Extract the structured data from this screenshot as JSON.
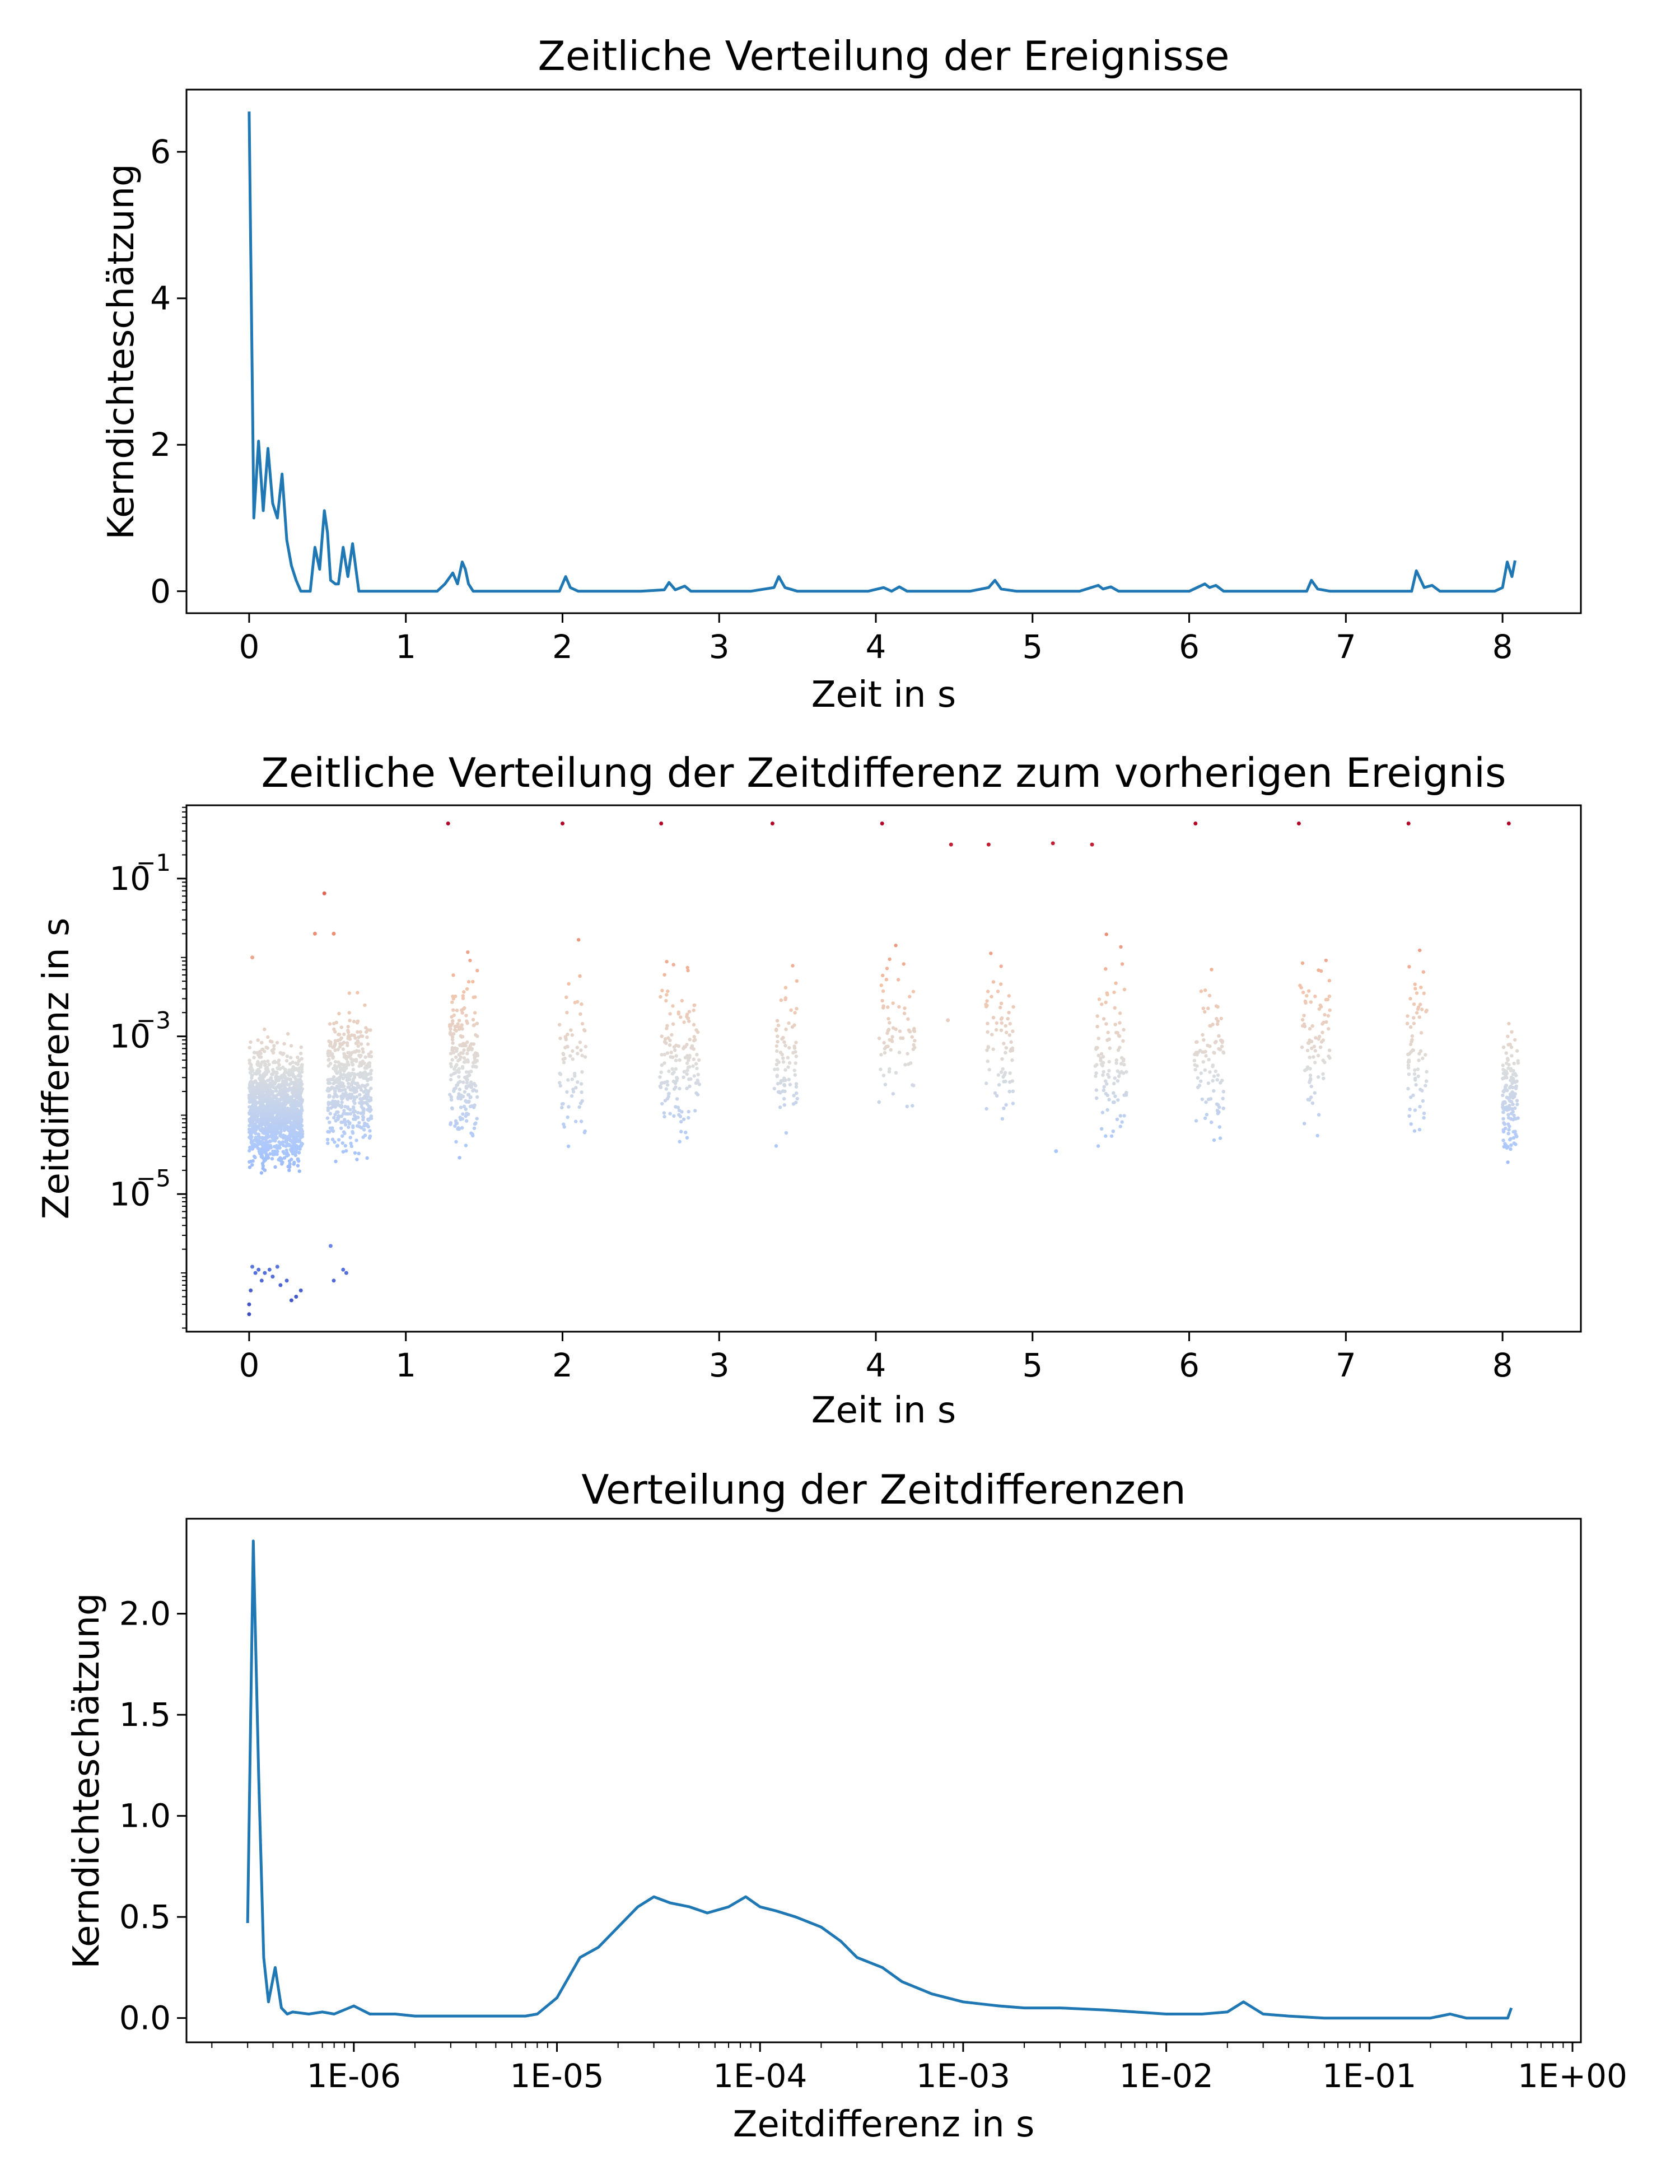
{
  "figure": {
    "line_color": "#1f77b4",
    "axis_color": "#000000",
    "scatter_colormap": [
      "#3b4cc0",
      "#6f92f3",
      "#aac7fd",
      "#dcdddd",
      "#f2c4ab",
      "#e7745b",
      "#b40426"
    ]
  },
  "chart_data": [
    {
      "type": "line",
      "title": "Zeitliche Verteilung der Ereignisse",
      "xlabel": "Zeit in s",
      "ylabel": "Kerndichteschätzung",
      "xlim": [
        -0.4,
        8.5
      ],
      "ylim": [
        -0.3,
        6.85
      ],
      "xticks": [
        0,
        1,
        2,
        3,
        4,
        5,
        6,
        7,
        8
      ],
      "xtick_labels": [
        "0",
        "1",
        "2",
        "3",
        "4",
        "5",
        "6",
        "7",
        "8"
      ],
      "yticks": [
        0,
        2,
        4,
        6
      ],
      "ytick_labels": [
        "0",
        "2",
        "4",
        "6"
      ],
      "grid": false,
      "series": [
        {
          "color": "#1f77b4",
          "x": [
            0.0,
            0.03,
            0.06,
            0.09,
            0.12,
            0.15,
            0.18,
            0.21,
            0.24,
            0.27,
            0.3,
            0.33,
            0.36,
            0.39,
            0.42,
            0.45,
            0.48,
            0.5,
            0.52,
            0.55,
            0.57,
            0.6,
            0.63,
            0.66,
            0.7,
            0.73,
            0.76,
            0.8,
            0.9,
            1.0,
            1.1,
            1.2,
            1.25,
            1.3,
            1.33,
            1.36,
            1.38,
            1.4,
            1.43,
            1.47,
            1.55,
            1.8,
            1.98,
            2.02,
            2.05,
            2.1,
            2.3,
            2.5,
            2.65,
            2.68,
            2.72,
            2.78,
            2.82,
            2.88,
            3.0,
            3.2,
            3.35,
            3.38,
            3.42,
            3.5,
            3.7,
            3.95,
            4.05,
            4.1,
            4.15,
            4.2,
            4.3,
            4.45,
            4.6,
            4.72,
            4.76,
            4.8,
            4.9,
            5.1,
            5.3,
            5.42,
            5.45,
            5.5,
            5.55,
            5.6,
            5.8,
            6.0,
            6.1,
            6.13,
            6.17,
            6.22,
            6.3,
            6.6,
            6.75,
            6.78,
            6.82,
            6.9,
            7.1,
            7.3,
            7.42,
            7.45,
            7.5,
            7.55,
            7.6,
            7.8,
            7.95,
            8.0,
            8.03,
            8.06,
            8.08
          ],
          "y": [
            6.55,
            1.0,
            2.05,
            1.1,
            1.95,
            1.2,
            1.0,
            1.6,
            0.7,
            0.35,
            0.15,
            0.0,
            0.0,
            0.0,
            0.6,
            0.3,
            1.1,
            0.8,
            0.15,
            0.1,
            0.1,
            0.6,
            0.2,
            0.65,
            0.0,
            0.0,
            0.0,
            0.0,
            0.0,
            0.0,
            0.0,
            0.0,
            0.1,
            0.25,
            0.1,
            0.4,
            0.3,
            0.1,
            0.0,
            0.0,
            0.0,
            0.0,
            0.0,
            0.2,
            0.05,
            0.0,
            0.0,
            0.0,
            0.02,
            0.12,
            0.02,
            0.07,
            0.0,
            0.0,
            0.0,
            0.0,
            0.05,
            0.2,
            0.05,
            0.0,
            0.0,
            0.0,
            0.05,
            0.0,
            0.06,
            0.0,
            0.0,
            0.0,
            0.0,
            0.05,
            0.15,
            0.03,
            0.0,
            0.0,
            0.0,
            0.08,
            0.03,
            0.06,
            0.0,
            0.0,
            0.0,
            0.0,
            0.1,
            0.05,
            0.08,
            0.0,
            0.0,
            0.0,
            0.0,
            0.15,
            0.03,
            0.0,
            0.0,
            0.0,
            0.0,
            0.28,
            0.05,
            0.08,
            0.0,
            0.0,
            0.0,
            0.05,
            0.4,
            0.2,
            0.42
          ]
        }
      ]
    },
    {
      "type": "scatter",
      "title": "Zeitliche Verteilung der Zeitdifferenz zum vorherigen Ereignis",
      "xlabel": "Zeit in s",
      "ylabel": "Zeitdifferenz in s",
      "xlim": [
        -0.4,
        8.5
      ],
      "ylim": [
        1.8e-07,
        0.85
      ],
      "yscale": "log",
      "xticks": [
        0,
        1,
        2,
        3,
        4,
        5,
        6,
        7,
        8
      ],
      "xtick_labels": [
        "0",
        "1",
        "2",
        "3",
        "4",
        "5",
        "6",
        "7",
        "8"
      ],
      "yticks": [
        1e-05,
        0.001,
        0.1
      ],
      "ytick_labels": [
        "10",
        "10",
        "10"
      ],
      "ytick_exponents": [
        "−5",
        "−3",
        "−1"
      ],
      "grid": false,
      "color_by": "y (log scale, coolwarm)",
      "clusters": [
        {
          "t_from": 0.0,
          "t_to": 0.34,
          "dt_min": 1.2e-05,
          "dt_max": 0.0015,
          "n": 1400
        },
        {
          "t_from": 0.5,
          "t_to": 0.78,
          "dt_min": 1.5e-05,
          "dt_max": 0.005,
          "n": 500
        },
        {
          "t_from": 1.28,
          "t_to": 1.46,
          "dt_min": 1.5e-05,
          "dt_max": 0.02,
          "n": 230
        },
        {
          "t_from": 1.98,
          "t_to": 2.15,
          "dt_min": 1.2e-05,
          "dt_max": 0.025,
          "n": 70
        },
        {
          "t_from": 2.62,
          "t_to": 2.88,
          "dt_min": 1.5e-05,
          "dt_max": 0.03,
          "n": 150
        },
        {
          "t_from": 3.35,
          "t_to": 3.5,
          "dt_min": 1.5e-05,
          "dt_max": 0.025,
          "n": 80
        },
        {
          "t_from": 4.02,
          "t_to": 4.25,
          "dt_min": 5e-05,
          "dt_max": 0.03,
          "n": 70
        },
        {
          "t_from": 4.7,
          "t_to": 4.88,
          "dt_min": 3e-05,
          "dt_max": 0.025,
          "n": 70
        },
        {
          "t_from": 5.4,
          "t_to": 5.6,
          "dt_min": 1.2e-05,
          "dt_max": 0.025,
          "n": 100
        },
        {
          "t_from": 6.03,
          "t_to": 6.22,
          "dt_min": 2e-05,
          "dt_max": 0.025,
          "n": 90
        },
        {
          "t_from": 6.7,
          "t_to": 6.9,
          "dt_min": 3e-05,
          "dt_max": 0.035,
          "n": 80
        },
        {
          "t_from": 7.38,
          "t_to": 7.52,
          "dt_min": 2e-05,
          "dt_max": 0.04,
          "n": 70
        },
        {
          "t_from": 8.0,
          "t_to": 8.1,
          "dt_min": 1.2e-05,
          "dt_max": 0.003,
          "n": 140
        }
      ],
      "low_cluster_points": [
        {
          "t": 0.0,
          "dt": 3e-07
        },
        {
          "t": 0.0,
          "dt": 4e-07
        },
        {
          "t": 0.01,
          "dt": 6e-07
        },
        {
          "t": 0.02,
          "dt": 1.2e-06
        },
        {
          "t": 0.04,
          "dt": 1e-06
        },
        {
          "t": 0.06,
          "dt": 1.1e-06
        },
        {
          "t": 0.08,
          "dt": 8e-07
        },
        {
          "t": 0.1,
          "dt": 1e-06
        },
        {
          "t": 0.13,
          "dt": 1.1e-06
        },
        {
          "t": 0.15,
          "dt": 9e-07
        },
        {
          "t": 0.18,
          "dt": 1.2e-06
        },
        {
          "t": 0.2,
          "dt": 7e-07
        },
        {
          "t": 0.24,
          "dt": 8e-07
        },
        {
          "t": 0.27,
          "dt": 4.5e-07
        },
        {
          "t": 0.3,
          "dt": 5e-07
        },
        {
          "t": 0.33,
          "dt": 6e-07
        },
        {
          "t": 0.52,
          "dt": 2.2e-06
        },
        {
          "t": 0.54,
          "dt": 8e-07
        },
        {
          "t": 0.6,
          "dt": 1.1e-06
        },
        {
          "t": 0.62,
          "dt": 1e-06
        }
      ],
      "top_points": [
        {
          "t": 1.27,
          "dt": 0.5
        },
        {
          "t": 2.0,
          "dt": 0.5
        },
        {
          "t": 2.63,
          "dt": 0.5
        },
        {
          "t": 3.34,
          "dt": 0.5
        },
        {
          "t": 4.04,
          "dt": 0.5
        },
        {
          "t": 4.48,
          "dt": 0.27
        },
        {
          "t": 4.72,
          "dt": 0.27
        },
        {
          "t": 5.13,
          "dt": 0.28
        },
        {
          "t": 5.38,
          "dt": 0.27
        },
        {
          "t": 6.04,
          "dt": 0.5
        },
        {
          "t": 6.7,
          "dt": 0.5
        },
        {
          "t": 7.4,
          "dt": 0.5
        },
        {
          "t": 8.04,
          "dt": 0.5
        },
        {
          "t": 0.48,
          "dt": 0.065
        },
        {
          "t": 0.42,
          "dt": 0.02
        },
        {
          "t": 0.54,
          "dt": 0.02
        },
        {
          "t": 0.02,
          "dt": 0.01
        },
        {
          "t": 4.46,
          "dt": 0.0016
        },
        {
          "t": 5.15,
          "dt": 3.5e-05
        }
      ]
    },
    {
      "type": "line",
      "title": "Verteilung der Zeitdifferenzen",
      "xlabel": "Zeitdifferenz in s",
      "ylabel": "Kerndichteschätzung",
      "xscale": "log",
      "xlim": [
        1.5e-07,
        1.1
      ],
      "ylim": [
        -0.12,
        2.47
      ],
      "xticks": [
        1e-06,
        1e-05,
        0.0001,
        0.001,
        0.01,
        0.1,
        1.0
      ],
      "xtick_labels": [
        "1E-06",
        "1E-05",
        "1E-04",
        "1E-03",
        "1E-02",
        "1E-01",
        "1E+00"
      ],
      "yticks": [
        0.0,
        0.5,
        1.0,
        1.5,
        2.0
      ],
      "ytick_labels": [
        "0.0",
        "0.5",
        "1.0",
        "1.5",
        "2.0"
      ],
      "grid": false,
      "series": [
        {
          "color": "#1f77b4",
          "x": [
            3e-07,
            3.2e-07,
            3.4e-07,
            3.6e-07,
            3.8e-07,
            4.1e-07,
            4.4e-07,
            4.7e-07,
            5e-07,
            6e-07,
            7e-07,
            8e-07,
            1e-06,
            1.2e-06,
            1.6e-06,
            2e-06,
            3e-06,
            5e-06,
            7e-06,
            8e-06,
            1e-05,
            1.3e-05,
            1.6e-05,
            2e-05,
            2.5e-05,
            3e-05,
            3.6e-05,
            4.5e-05,
            5.5e-05,
            7e-05,
            8.5e-05,
            0.0001,
            0.00012,
            0.00015,
            0.0002,
            0.00025,
            0.0003,
            0.0004,
            0.0005,
            0.0007,
            0.001,
            0.0015,
            0.002,
            0.003,
            0.005,
            0.007,
            0.01,
            0.015,
            0.02,
            0.024,
            0.03,
            0.04,
            0.06,
            0.1,
            0.15,
            0.2,
            0.25,
            0.3,
            0.4,
            0.48,
            0.5
          ],
          "y": [
            0.47,
            2.36,
            1.2,
            0.3,
            0.08,
            0.25,
            0.05,
            0.02,
            0.03,
            0.02,
            0.03,
            0.02,
            0.06,
            0.02,
            0.02,
            0.01,
            0.01,
            0.01,
            0.01,
            0.02,
            0.1,
            0.3,
            0.35,
            0.45,
            0.55,
            0.6,
            0.57,
            0.55,
            0.52,
            0.55,
            0.6,
            0.55,
            0.53,
            0.5,
            0.45,
            0.38,
            0.3,
            0.25,
            0.18,
            0.12,
            0.08,
            0.06,
            0.05,
            0.05,
            0.04,
            0.03,
            0.02,
            0.02,
            0.03,
            0.08,
            0.02,
            0.01,
            0.0,
            0.0,
            0.0,
            0.0,
            0.02,
            0.0,
            0.0,
            0.0,
            0.05
          ]
        }
      ]
    }
  ]
}
